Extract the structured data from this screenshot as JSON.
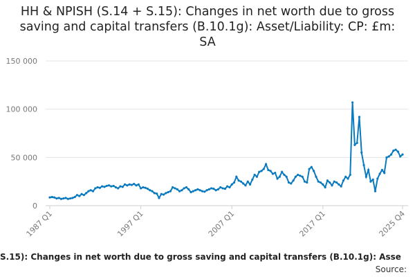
{
  "chart_data": {
    "type": "line",
    "title": "HH & NPISH (S.14 + S.15): Changes in net worth due to gross saving and capital transfers (B.10.1g): Asset/Liability: CP: £m: SA",
    "footer": "S.15): Changes in net worth due to gross saving and capital transfers (B.10.1g): Asse",
    "source": "Source:",
    "categories": [
      "1987 Q1",
      null,
      null,
      null,
      null,
      null,
      null,
      null,
      null,
      null,
      null,
      null,
      null,
      null,
      null,
      null,
      null,
      null,
      null,
      null,
      null,
      null,
      null,
      null,
      null,
      null,
      null,
      null,
      null,
      null,
      null,
      null,
      null,
      null,
      null,
      null,
      null,
      null,
      null,
      null,
      "1997 Q1",
      null,
      null,
      null,
      null,
      null,
      null,
      null,
      null,
      null,
      null,
      null,
      null,
      null,
      null,
      null,
      null,
      null,
      null,
      null,
      null,
      null,
      null,
      null,
      null,
      null,
      null,
      null,
      null,
      null,
      null,
      null,
      null,
      null,
      null,
      null,
      null,
      null,
      null,
      null,
      "2007 Q1",
      null,
      null,
      null,
      null,
      null,
      null,
      null,
      null,
      null,
      null,
      null,
      null,
      null,
      null,
      null,
      null,
      null,
      null,
      null,
      null,
      null,
      null,
      null,
      null,
      null,
      null,
      null,
      null,
      null,
      null,
      null,
      null,
      null,
      null,
      null,
      null,
      null,
      null,
      null,
      "2017 Q1",
      null,
      null,
      null,
      null,
      null,
      null,
      null,
      null,
      null,
      null,
      null,
      null,
      null,
      null,
      null,
      null,
      null,
      null,
      null,
      null,
      null,
      null,
      null,
      null,
      null,
      null,
      null,
      null,
      null,
      null,
      null,
      null,
      null,
      null,
      "2025 Q4"
    ],
    "series": [
      {
        "color": "#0a7abf",
        "values": [
          8500,
          9000,
          8500,
          7500,
          8000,
          7000,
          7500,
          8000,
          7000,
          7500,
          8000,
          9000,
          11000,
          10000,
          12000,
          11000,
          13000,
          15000,
          16000,
          15000,
          18000,
          19000,
          18500,
          20000,
          19500,
          20500,
          21000,
          20000,
          20500,
          19000,
          18000,
          20000,
          19500,
          22000,
          21000,
          22000,
          21500,
          22500,
          21000,
          22000,
          18000,
          19000,
          18500,
          17500,
          16000,
          15000,
          13000,
          12500,
          8000,
          12000,
          11500,
          13000,
          14000,
          15000,
          19000,
          18000,
          17000,
          15000,
          16000,
          18000,
          19000,
          17000,
          14000,
          15000,
          16000,
          17000,
          16000,
          15000,
          14500,
          16000,
          17000,
          18000,
          17500,
          16000,
          17000,
          19000,
          18000,
          17500,
          20000,
          19000,
          22000,
          24000,
          30000,
          26000,
          25000,
          23000,
          21000,
          25000,
          22000,
          27000,
          32000,
          30000,
          35000,
          36000,
          38000,
          43000,
          37000,
          36000,
          33000,
          34000,
          28000,
          30000,
          35000,
          32000,
          30000,
          24000,
          23000,
          26000,
          30000,
          32000,
          31000,
          30000,
          25000,
          24000,
          38000,
          40000,
          36000,
          30000,
          25000,
          24000,
          22000,
          19000,
          26000,
          24000,
          21000,
          25000,
          24000,
          22000,
          20000,
          26000,
          30000,
          28000,
          32000,
          107000,
          63000,
          65000,
          92000,
          55000,
          42000,
          30000,
          37000,
          25000,
          27000,
          15000,
          28000,
          33000,
          37000,
          34000,
          50000,
          51000,
          53000,
          57000,
          58000,
          56000,
          51000,
          53000
        ]
      }
    ],
    "ylim": [
      0,
      150000
    ],
    "yticks": [
      0,
      {
        "value": 50000,
        "label": "50 000"
      },
      {
        "value": 100000,
        "label": "100 000"
      },
      {
        "value": 150000,
        "label": "150 000"
      }
    ],
    "grid": true
  }
}
